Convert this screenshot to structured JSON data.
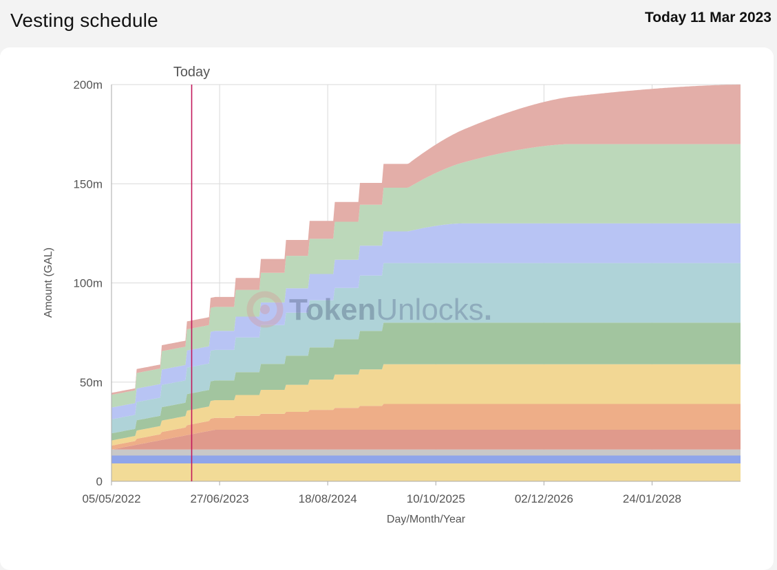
{
  "header": {
    "title": "Vesting schedule",
    "today": "Today 11 Mar 2023"
  },
  "watermark": {
    "bold_part": "Token",
    "light_part": "Unlocks",
    "dot": "."
  },
  "chart_data": {
    "type": "area",
    "stacked": true,
    "step": true,
    "title": "",
    "xlabel": "Day/Month/Year",
    "ylabel": "Amount (GAL)",
    "x_range": [
      "2022-05-05",
      "2028-12-31"
    ],
    "ylim": [
      0,
      200000000
    ],
    "y_ticks": [
      {
        "value": 0,
        "label": "0"
      },
      {
        "value": 50000000,
        "label": "50m"
      },
      {
        "value": 100000000,
        "label": "100m"
      },
      {
        "value": 150000000,
        "label": "150m"
      },
      {
        "value": 200000000,
        "label": "200m"
      }
    ],
    "x_ticks": [
      {
        "date": "2022-05-05",
        "label": "05/05/2022"
      },
      {
        "date": "2023-06-27",
        "label": "27/06/2023"
      },
      {
        "date": "2024-08-18",
        "label": "18/08/2024"
      },
      {
        "date": "2025-10-10",
        "label": "10/10/2025"
      },
      {
        "date": "2026-12-02",
        "label": "02/12/2026"
      },
      {
        "date": "2028-01-24",
        "label": "24/01/2028"
      }
    ],
    "today_marker": {
      "date": "2023-03-11",
      "label": "Today"
    },
    "grid": true,
    "legend": "none",
    "series": [
      {
        "color": "#f2db97",
        "kind": "flat",
        "total": 9000000
      },
      {
        "color": "#8fa5ea",
        "kind": "flat",
        "total": 4000000
      },
      {
        "color": "#c8c8c8",
        "kind": "flat",
        "total": 3000000
      },
      {
        "color": "#e09a8c",
        "kind": "linear",
        "start": 0,
        "total": 10000000,
        "from": "2022-05-05",
        "to": "2023-06-10"
      },
      {
        "color": "#eeae88",
        "kind": "step",
        "start": 1000000,
        "total": 13000000,
        "from": "2022-05-05",
        "to": "2025-06-25",
        "steps": 12
      },
      {
        "color": "#f2d794",
        "kind": "step",
        "start": 1000000,
        "total": 20000000,
        "from": "2022-05-05",
        "to": "2025-06-25",
        "steps": 12
      },
      {
        "color": "#a2c59f",
        "kind": "step",
        "start": 2000000,
        "total": 21000000,
        "from": "2022-05-05",
        "to": "2025-06-25",
        "steps": 12
      },
      {
        "color": "#afd3d8",
        "kind": "step",
        "start": 5000000,
        "total": 30000000,
        "from": "2022-05-05",
        "to": "2025-06-25",
        "steps": 12
      },
      {
        "color": "#b8c4f4",
        "kind": "mixed",
        "start": 5000000,
        "total": 20000000,
        "from": "2022-05-05",
        "to": "2025-06-25",
        "steps": 12,
        "ramp_to": "2026-01-15",
        "tail": 4000000
      },
      {
        "color": "#bcd8ba",
        "kind": "mixed",
        "start": 5000000,
        "total": 40000000,
        "from": "2022-05-05",
        "to": "2025-06-25",
        "steps": 12,
        "ramp_to": "2027-03-15",
        "tail": 18000000
      },
      {
        "color": "#e3aea8",
        "kind": "mixed",
        "start": 0,
        "total": 30000000,
        "from": "2022-05-05",
        "to": "2025-06-25",
        "steps": 12,
        "ramp_to": "2028-12-31",
        "tail": 18000000
      }
    ]
  }
}
